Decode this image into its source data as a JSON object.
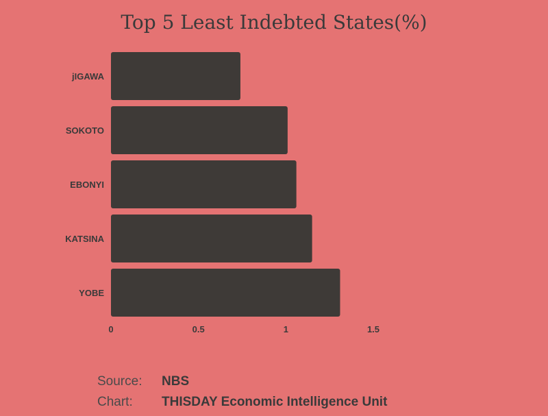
{
  "chart_data": {
    "type": "bar",
    "orientation": "horizontal",
    "title": "Top 5 Least Indebted States(%)",
    "categories": [
      "jIGAWA",
      "SOKOTO",
      "EBONYI",
      "KATSINA",
      "YOBE"
    ],
    "values": [
      0.74,
      1.01,
      1.06,
      1.15,
      1.31
    ],
    "xlim": [
      0,
      1.5
    ],
    "xticks": [
      "0",
      "0.5",
      "1",
      "1.5"
    ],
    "xtick_values": [
      0,
      0.5,
      1,
      1.5
    ],
    "grid": false,
    "bar_color": "#3e3a37"
  },
  "footer": {
    "source_label": "Source:",
    "source_value": "NBS",
    "chart_label": "Chart:",
    "chart_value": "THISDAY Economic Intelligence Unit"
  },
  "colors": {
    "background": "#e57373",
    "text": "#3a3a3a"
  }
}
